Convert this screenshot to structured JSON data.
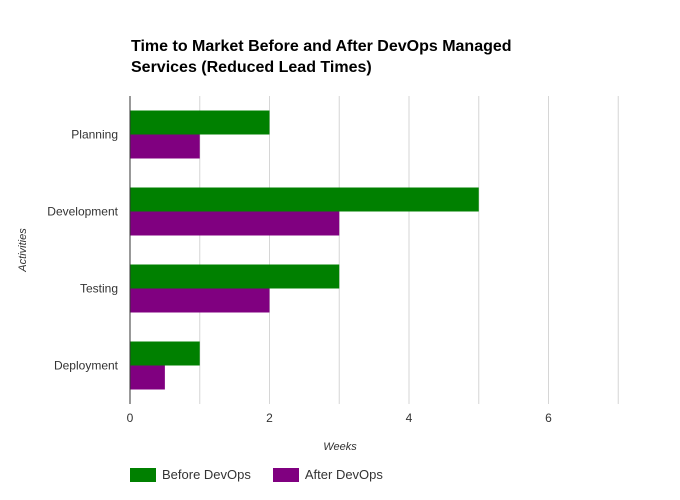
{
  "chart_data": {
    "type": "bar",
    "orientation": "horizontal",
    "title": "Time to Market Before and After DevOps Managed Services (Reduced Lead Times)",
    "xlabel": "Weeks",
    "ylabel": "Activities",
    "categories": [
      "Planning",
      "Development",
      "Testing",
      "Deployment"
    ],
    "series": [
      {
        "name": "Before DevOps",
        "values": [
          2,
          5,
          3,
          1
        ],
        "color": "#008000"
      },
      {
        "name": "After DevOps",
        "values": [
          1,
          3,
          2,
          0.5
        ],
        "color": "#800080"
      }
    ],
    "xlim": [
      0,
      7
    ],
    "xticks": [
      0,
      2,
      4,
      6
    ],
    "grid": true,
    "legend_position": "bottom-left"
  }
}
